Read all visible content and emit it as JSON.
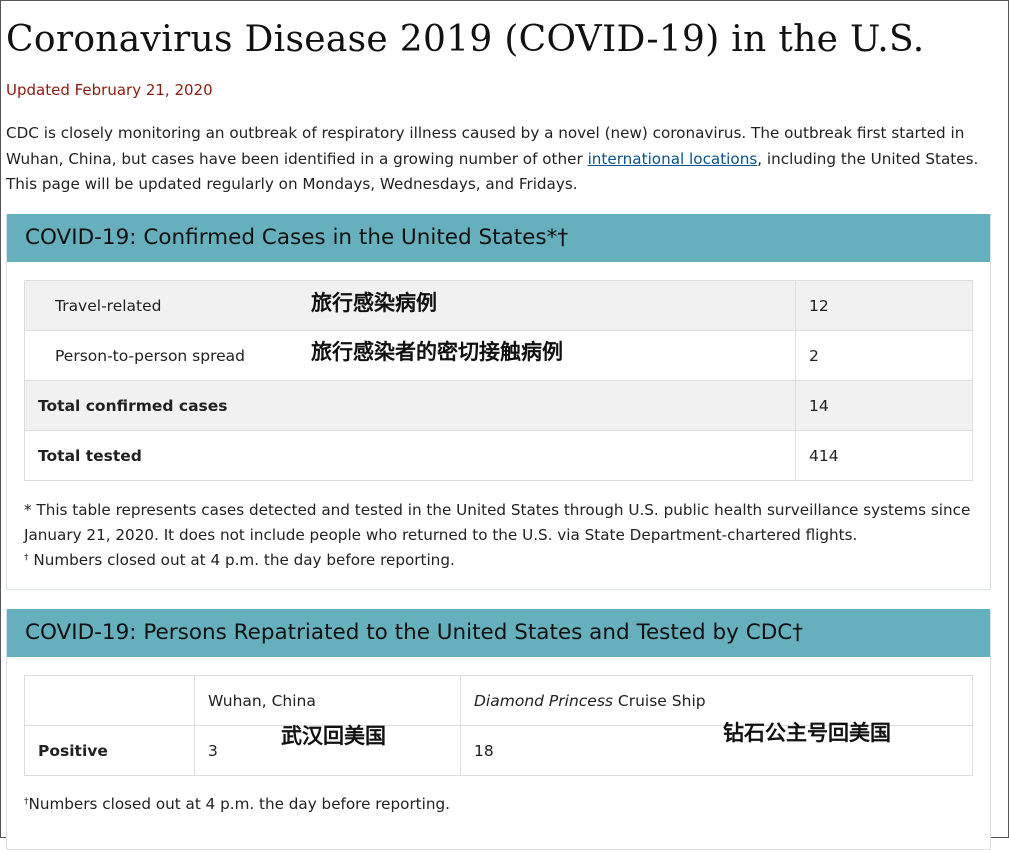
{
  "page_title": "Coronavirus Disease 2019 (COVID-19) in the U.S.",
  "updated": "Updated February 21, 2020",
  "intro": {
    "text_before": "CDC is closely monitoring an outbreak of respiratory illness caused by a novel (new) coronavirus. The outbreak first started in Wuhan, China, but cases have been identified in a growing number of other ",
    "link": "international locations",
    "text_after": ", including the United States. This page will be updated regularly on Mondays, Wednesdays, and Fridays."
  },
  "confirmed": {
    "title": "COVID-19: Confirmed Cases in the United States*†",
    "rows": [
      {
        "label": "Travel-related",
        "value": "12",
        "annotation": "旅行感染病例"
      },
      {
        "label": "Person-to-person spread",
        "value": "2",
        "annotation": "旅行感染者的密切接触病例"
      },
      {
        "label": "Total confirmed cases",
        "value": "14"
      },
      {
        "label": "Total tested",
        "value": "414"
      }
    ],
    "note1": "* This table represents cases detected and tested in the United States through U.S. public health surveillance systems since January 21, 2020. It does not include people who returned to the U.S. via State Department-chartered flights.",
    "note2_mark": "†",
    "note2": "Numbers closed out at 4 p.m. the day before reporting."
  },
  "repatriated": {
    "title": "COVID-19: Persons Repatriated to the United States and Tested by CDC†",
    "col1": "Wuhan, China",
    "col2_italic": "Diamond Princess",
    "col2_rest": " Cruise Ship",
    "row_label": "Positive",
    "val1": "3",
    "val2": "18",
    "annotation1": "武汉回美国",
    "annotation2": "钻石公主号回美国",
    "note_mark": "†",
    "note": "Numbers closed out at 4 p.m. the day before reporting."
  }
}
